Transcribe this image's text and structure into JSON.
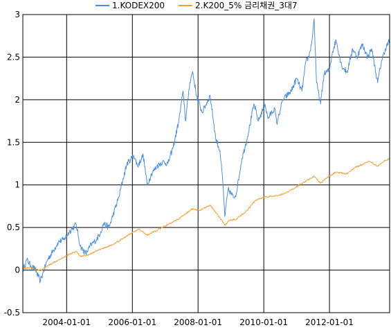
{
  "chart_data": {
    "type": "line",
    "title": "",
    "xlabel": "",
    "ylabel": "",
    "x_range": [
      "2002-09-01",
      "2013-10-31"
    ],
    "ylim": [
      -0.5,
      3
    ],
    "yticks": [
      "-0.5",
      "0",
      "0.5",
      "1",
      "1.5",
      "2",
      "2.5",
      "3"
    ],
    "xticks": [
      {
        "label": "2004-01-01",
        "date": "2004-01-01"
      },
      {
        "label": "2006-01-01",
        "date": "2006-01-01"
      },
      {
        "label": "2008-01-01",
        "date": "2008-01-01"
      },
      {
        "label": "2010-01-01",
        "date": "2010-01-01"
      },
      {
        "label": "2012-01-01",
        "date": "2012-01-01"
      }
    ],
    "grid": true,
    "legend_position": "top-center",
    "series": [
      {
        "name": "1.KODEX200",
        "color": "#4a8fe0",
        "points": [
          [
            "2002-09-01",
            0.0
          ],
          [
            "2002-10-15",
            0.12
          ],
          [
            "2002-12-01",
            0.05
          ],
          [
            "2003-01-15",
            0.01
          ],
          [
            "2003-03-15",
            -0.13
          ],
          [
            "2003-04-15",
            -0.03
          ],
          [
            "2003-06-01",
            0.12
          ],
          [
            "2003-08-01",
            0.22
          ],
          [
            "2003-10-01",
            0.33
          ],
          [
            "2003-12-01",
            0.36
          ],
          [
            "2004-02-01",
            0.45
          ],
          [
            "2004-04-15",
            0.54
          ],
          [
            "2004-06-01",
            0.28
          ],
          [
            "2004-08-01",
            0.19
          ],
          [
            "2004-10-01",
            0.3
          ],
          [
            "2004-12-01",
            0.36
          ],
          [
            "2005-01-15",
            0.45
          ],
          [
            "2005-02-15",
            0.55
          ],
          [
            "2005-04-15",
            0.5
          ],
          [
            "2005-06-01",
            0.65
          ],
          [
            "2005-08-01",
            0.85
          ],
          [
            "2005-09-15",
            1.05
          ],
          [
            "2005-11-01",
            1.25
          ],
          [
            "2005-12-15",
            1.3
          ],
          [
            "2006-01-15",
            1.35
          ],
          [
            "2006-03-01",
            1.22
          ],
          [
            "2006-05-01",
            1.35
          ],
          [
            "2006-06-15",
            1.0
          ],
          [
            "2006-08-01",
            1.13
          ],
          [
            "2006-10-01",
            1.22
          ],
          [
            "2006-12-01",
            1.27
          ],
          [
            "2007-02-01",
            1.25
          ],
          [
            "2007-04-01",
            1.45
          ],
          [
            "2007-06-01",
            1.75
          ],
          [
            "2007-07-20",
            2.1
          ],
          [
            "2007-08-15",
            1.75
          ],
          [
            "2007-10-01",
            2.2
          ],
          [
            "2007-11-01",
            2.33
          ],
          [
            "2007-12-15",
            2.05
          ],
          [
            "2008-02-15",
            1.85
          ],
          [
            "2008-05-15",
            2.05
          ],
          [
            "2008-07-15",
            1.55
          ],
          [
            "2008-09-01",
            1.4
          ],
          [
            "2008-10-01",
            1.05
          ],
          [
            "2008-10-25",
            0.63
          ],
          [
            "2008-12-01",
            0.95
          ],
          [
            "2009-02-01",
            0.85
          ],
          [
            "2009-03-01",
            0.9
          ],
          [
            "2009-05-01",
            1.3
          ],
          [
            "2009-07-01",
            1.55
          ],
          [
            "2009-09-15",
            1.95
          ],
          [
            "2009-11-01",
            1.75
          ],
          [
            "2010-01-15",
            1.95
          ],
          [
            "2010-02-15",
            1.78
          ],
          [
            "2010-05-01",
            1.9
          ],
          [
            "2010-05-25",
            1.72
          ],
          [
            "2010-08-01",
            2.0
          ],
          [
            "2010-11-01",
            2.1
          ],
          [
            "2011-01-01",
            2.25
          ],
          [
            "2011-03-01",
            2.1
          ],
          [
            "2011-04-15",
            2.45
          ],
          [
            "2011-05-15",
            2.5
          ],
          [
            "2011-06-15",
            2.65
          ],
          [
            "2011-07-15",
            2.95
          ],
          [
            "2011-08-10",
            2.2
          ],
          [
            "2011-09-25",
            1.95
          ],
          [
            "2011-11-01",
            2.3
          ],
          [
            "2012-01-01",
            2.35
          ],
          [
            "2012-02-01",
            2.55
          ],
          [
            "2012-03-15",
            2.7
          ],
          [
            "2012-05-15",
            2.4
          ],
          [
            "2012-07-15",
            2.32
          ],
          [
            "2012-09-15",
            2.6
          ],
          [
            "2012-11-01",
            2.5
          ],
          [
            "2013-01-01",
            2.65
          ],
          [
            "2013-03-01",
            2.5
          ],
          [
            "2013-04-15",
            2.6
          ],
          [
            "2013-06-20",
            2.2
          ],
          [
            "2013-08-01",
            2.45
          ],
          [
            "2013-09-15",
            2.6
          ],
          [
            "2013-10-31",
            2.7
          ]
        ]
      },
      {
        "name": "2.K200_5% 금리채권_3대7",
        "color": "#f0a030",
        "points": [
          [
            "2002-09-01",
            0.02
          ],
          [
            "2002-12-01",
            0.03
          ],
          [
            "2003-03-15",
            -0.01
          ],
          [
            "2003-06-01",
            0.05
          ],
          [
            "2003-10-01",
            0.12
          ],
          [
            "2004-01-01",
            0.17
          ],
          [
            "2004-04-15",
            0.22
          ],
          [
            "2004-06-01",
            0.16
          ],
          [
            "2004-09-01",
            0.18
          ],
          [
            "2005-01-01",
            0.24
          ],
          [
            "2005-06-01",
            0.3
          ],
          [
            "2005-10-01",
            0.38
          ],
          [
            "2006-01-15",
            0.45
          ],
          [
            "2006-03-15",
            0.48
          ],
          [
            "2006-06-15",
            0.41
          ],
          [
            "2006-12-01",
            0.5
          ],
          [
            "2007-06-01",
            0.6
          ],
          [
            "2007-10-30",
            0.72
          ],
          [
            "2008-01-15",
            0.7
          ],
          [
            "2008-05-15",
            0.76
          ],
          [
            "2008-07-15",
            0.68
          ],
          [
            "2008-10-25",
            0.53
          ],
          [
            "2008-12-15",
            0.58
          ],
          [
            "2009-03-01",
            0.6
          ],
          [
            "2009-07-01",
            0.7
          ],
          [
            "2009-10-01",
            0.82
          ],
          [
            "2010-01-15",
            0.86
          ],
          [
            "2010-06-01",
            0.87
          ],
          [
            "2010-10-01",
            0.92
          ],
          [
            "2011-01-01",
            0.98
          ],
          [
            "2011-07-15",
            1.1
          ],
          [
            "2011-09-25",
            1.02
          ],
          [
            "2011-11-15",
            1.07
          ],
          [
            "2012-03-15",
            1.15
          ],
          [
            "2012-07-15",
            1.13
          ],
          [
            "2012-10-01",
            1.2
          ],
          [
            "2013-01-01",
            1.24
          ],
          [
            "2013-03-15",
            1.28
          ],
          [
            "2013-06-20",
            1.22
          ],
          [
            "2013-09-01",
            1.28
          ],
          [
            "2013-10-31",
            1.31
          ]
        ]
      }
    ]
  }
}
